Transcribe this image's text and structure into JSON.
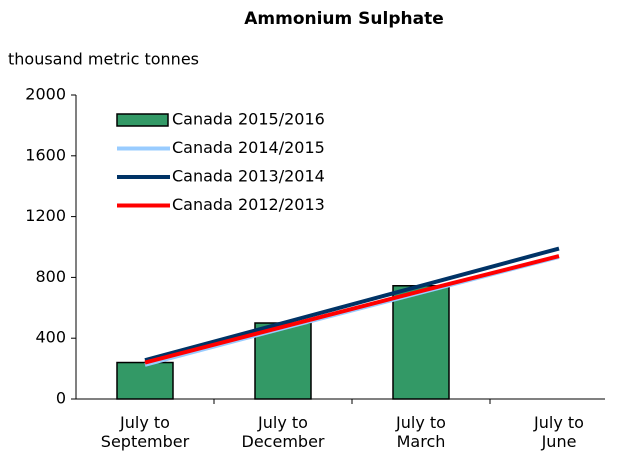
{
  "chart_data": {
    "type": "bar_line",
    "title": "Ammonium Sulphate",
    "y_axis_label": "thousand metric tonnes",
    "categories": [
      "July to\nSeptember",
      "July to\nDecember",
      "July to\nMarch",
      "July to\nJune"
    ],
    "series": [
      {
        "name": "Canada 2015/2016",
        "type": "bar",
        "color": "#339966",
        "values": [
          240,
          500,
          745,
          null
        ]
      },
      {
        "name": "Canada 2014/2015",
        "type": "line",
        "color": "#99ccff",
        "values": [
          225,
          465,
          700,
          935
        ]
      },
      {
        "name": "Canada 2013/2014",
        "type": "line",
        "color": "#003366",
        "values": [
          255,
          500,
          745,
          990
        ]
      },
      {
        "name": "Canada 2012/2013",
        "type": "line",
        "color": "#ff0000",
        "values": [
          240,
          475,
          710,
          940
        ]
      }
    ],
    "ylim": [
      0,
      2000
    ],
    "yticks": [
      0,
      400,
      800,
      1200,
      1600,
      2000
    ],
    "legend": "upper left"
  }
}
